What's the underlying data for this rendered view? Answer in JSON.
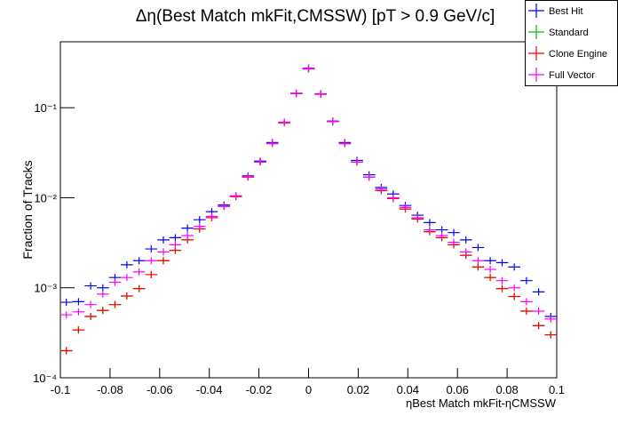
{
  "chart_data": {
    "type": "scatter",
    "title": "Δη(Best Match mkFit,CMSSW) [pT > 0.9 GeV/c]",
    "y_label": "Fraction of Tracks",
    "x_label": "ηBest Match mkFit-ηCMSSW",
    "log_y": true,
    "legend": "top-right",
    "xlim": [
      -0.1,
      0.1
    ],
    "ylim": [
      0.0001,
      0.54
    ],
    "xticks": [
      -0.1,
      -0.08,
      -0.06,
      -0.04,
      -0.02,
      0,
      0.02,
      0.04,
      0.06,
      0.08,
      0.1
    ],
    "yticks": [
      {
        "value": 0.0001,
        "label": "10⁻⁴"
      },
      {
        "value": 0.001,
        "label": "10⁻³"
      },
      {
        "value": 0.01,
        "label": "10⁻²"
      },
      {
        "value": 0.1,
        "label": "10⁻¹"
      }
    ],
    "x": [
      -0.0976,
      -0.0927,
      -0.0878,
      -0.0829,
      -0.078,
      -0.0732,
      -0.0683,
      -0.0634,
      -0.0585,
      -0.0537,
      -0.0488,
      -0.0439,
      -0.039,
      -0.0341,
      -0.0293,
      -0.0244,
      -0.0195,
      -0.0146,
      -0.0098,
      -0.0049,
      0,
      0.0049,
      0.0098,
      0.0146,
      0.0195,
      0.0244,
      0.0293,
      0.0341,
      0.039,
      0.0439,
      0.0488,
      0.0537,
      0.0585,
      0.0634,
      0.0683,
      0.0732,
      0.078,
      0.0829,
      0.0878,
      0.0927,
      0.0976
    ],
    "series": [
      {
        "name": "Best Hit",
        "color": "#0000ff",
        "values": [
          0.00069,
          0.0007,
          0.00105,
          0.001,
          0.0013,
          0.0018,
          0.002,
          0.0027,
          0.0034,
          0.0036,
          0.0046,
          0.0057,
          0.007,
          0.0083,
          0.0105,
          0.0175,
          0.0255,
          0.041,
          0.069,
          0.145,
          0.275,
          0.143,
          0.071,
          0.041,
          0.026,
          0.018,
          0.013,
          0.011,
          0.0082,
          0.0064,
          0.0053,
          0.0044,
          0.0041,
          0.0034,
          0.0028,
          0.002,
          0.0019,
          0.0017,
          0.0012,
          0.0009,
          0.00048
        ]
      },
      {
        "name": "Standard",
        "color": "#00c000",
        "values": [
          0.0002,
          0.00034,
          0.00048,
          0.00056,
          0.00065,
          0.00081,
          0.00098,
          0.0014,
          0.002,
          0.0026,
          0.0034,
          0.0045,
          0.006,
          0.008,
          0.0103,
          0.017,
          0.025,
          0.04,
          0.068,
          0.143,
          0.27,
          0.141,
          0.07,
          0.04,
          0.025,
          0.017,
          0.012,
          0.0098,
          0.0075,
          0.0058,
          0.0042,
          0.0036,
          0.003,
          0.0023,
          0.0017,
          0.0013,
          0.00098,
          0.0008,
          0.00055,
          0.00038,
          0.0003
        ]
      },
      {
        "name": "Clone Engine",
        "color": "#ff0000",
        "values": [
          0.0002,
          0.00034,
          0.00048,
          0.00056,
          0.00065,
          0.00081,
          0.00098,
          0.0014,
          0.002,
          0.0026,
          0.0034,
          0.0045,
          0.006,
          0.008,
          0.0103,
          0.017,
          0.025,
          0.04,
          0.068,
          0.143,
          0.27,
          0.141,
          0.07,
          0.04,
          0.025,
          0.017,
          0.012,
          0.0098,
          0.0075,
          0.0058,
          0.0042,
          0.0036,
          0.003,
          0.0023,
          0.0017,
          0.0013,
          0.00098,
          0.0008,
          0.00055,
          0.00038,
          0.0003
        ]
      },
      {
        "name": "Full Vector",
        "color": "#ff00ff",
        "values": [
          0.0005,
          0.00054,
          0.00065,
          0.00085,
          0.00115,
          0.0013,
          0.0015,
          0.002,
          0.0025,
          0.003,
          0.0038,
          0.0048,
          0.0062,
          0.008,
          0.0105,
          0.0172,
          0.025,
          0.04,
          0.069,
          0.144,
          0.272,
          0.142,
          0.07,
          0.04,
          0.025,
          0.017,
          0.0125,
          0.01,
          0.0078,
          0.006,
          0.0044,
          0.0038,
          0.0032,
          0.0025,
          0.002,
          0.0016,
          0.0012,
          0.001,
          0.0007,
          0.00055,
          0.00045
        ]
      }
    ]
  }
}
